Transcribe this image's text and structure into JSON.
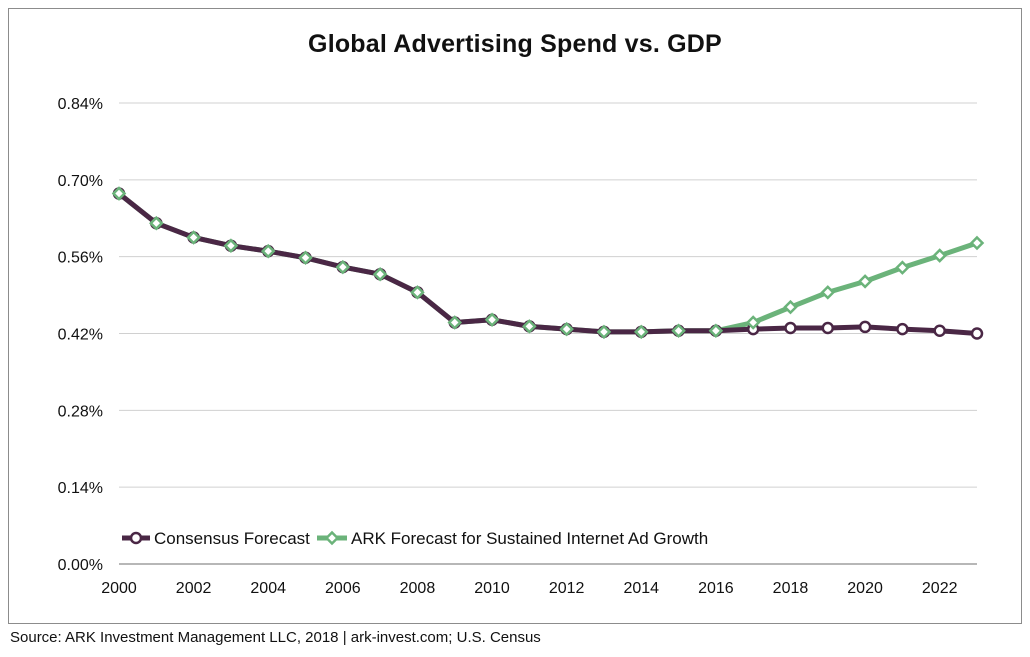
{
  "chart_data": {
    "type": "line",
    "title": "Global Advertising Spend vs. GDP",
    "xlabel": "",
    "ylabel": "",
    "x": [
      2000,
      2001,
      2002,
      2003,
      2004,
      2005,
      2006,
      2007,
      2008,
      2009,
      2010,
      2011,
      2012,
      2013,
      2014,
      2015,
      2016,
      2017,
      2018,
      2019,
      2020,
      2021,
      2022,
      2023
    ],
    "x_ticks": [
      2000,
      2002,
      2004,
      2006,
      2008,
      2010,
      2012,
      2014,
      2016,
      2018,
      2020,
      2022
    ],
    "ylim": [
      0,
      0.84
    ],
    "y_ticks": [
      0,
      0.14,
      0.28,
      0.42,
      0.56,
      0.7,
      0.84
    ],
    "y_tick_labels": [
      "0.00%",
      "0.14%",
      "0.28%",
      "0.42%",
      "0.56%",
      "0.70%",
      "0.84%"
    ],
    "grid": true,
    "legend_position": "bottom-left",
    "series": [
      {
        "name": "Consensus Forecast",
        "color": "#4a2745",
        "marker": "circle",
        "values": [
          0.675,
          0.621,
          0.595,
          0.58,
          0.57,
          0.558,
          0.541,
          0.528,
          0.495,
          0.44,
          0.445,
          0.433,
          0.428,
          0.423,
          0.423,
          0.425,
          0.425,
          0.428,
          0.43,
          0.43,
          0.432,
          0.428,
          0.425,
          0.42
        ]
      },
      {
        "name": "ARK Forecast for Sustained Internet Ad Growth",
        "color": "#6bb37a",
        "marker": "diamond",
        "values": [
          0.675,
          0.621,
          0.595,
          0.58,
          0.57,
          0.558,
          0.541,
          0.528,
          0.495,
          0.44,
          0.445,
          0.433,
          0.428,
          0.423,
          0.423,
          0.425,
          0.425,
          0.44,
          0.468,
          0.495,
          0.515,
          0.54,
          0.562,
          0.585
        ]
      }
    ]
  },
  "source_text": "Source: ARK Investment Management LLC, 2018 | ark-invest.com; U.S. Census"
}
